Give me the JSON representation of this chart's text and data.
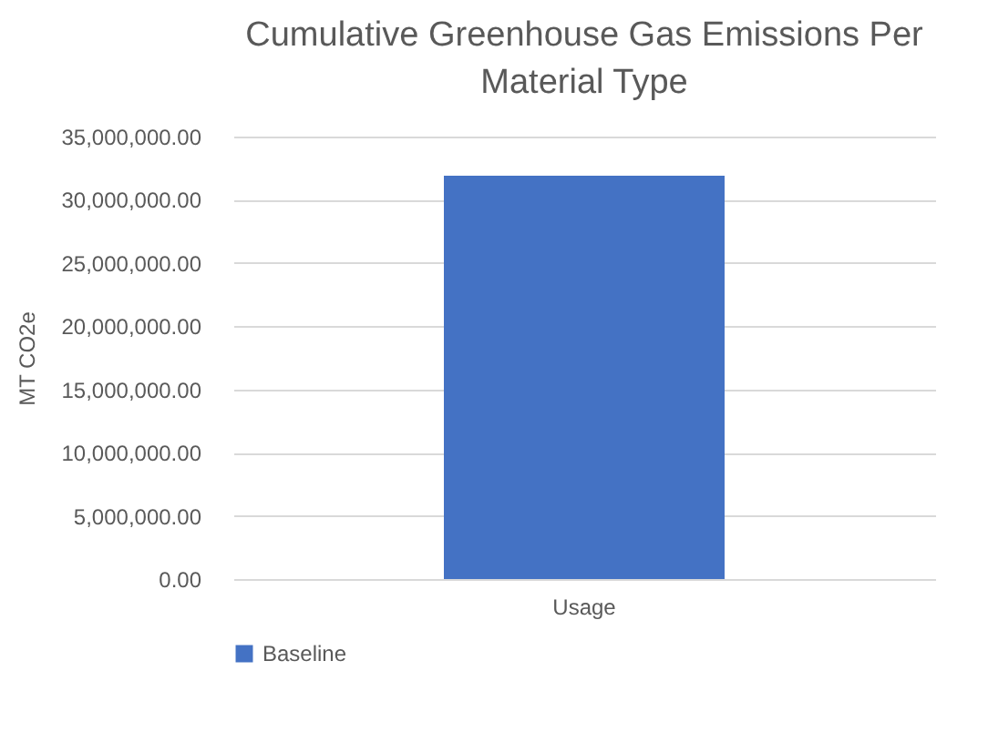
{
  "chart_data": {
    "type": "bar",
    "title": "Cumulative Greenhouse Gas Emissions Per Material Type",
    "ylabel": "MT CO2e",
    "categories": [
      "Usage"
    ],
    "series": [
      {
        "name": "Baseline",
        "color": "#4472c4",
        "values": [
          31900000
        ]
      }
    ],
    "ylim": [
      0,
      35000000
    ],
    "yticks": [
      {
        "value": 0,
        "label": "0.00"
      },
      {
        "value": 5000000,
        "label": "5,000,000.00"
      },
      {
        "value": 10000000,
        "label": "10,000,000.00"
      },
      {
        "value": 15000000,
        "label": "15,000,000.00"
      },
      {
        "value": 20000000,
        "label": "20,000,000.00"
      },
      {
        "value": 25000000,
        "label": "25,000,000.00"
      },
      {
        "value": 30000000,
        "label": "30,000,000.00"
      },
      {
        "value": 35000000,
        "label": "35,000,000.00"
      }
    ],
    "grid": "y",
    "legend": "bottom"
  }
}
